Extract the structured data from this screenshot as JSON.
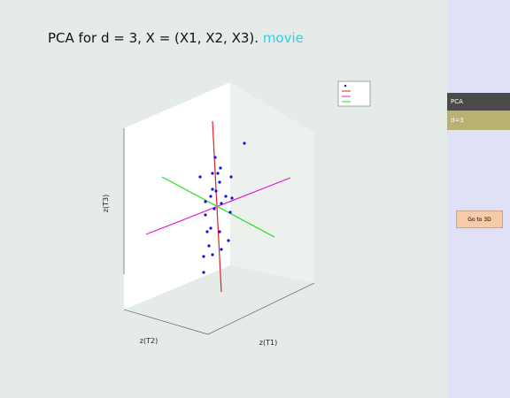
{
  "header": {
    "title": "PCA for d = 3, X = (X1, X2, X3).",
    "link": "movie"
  },
  "plot": {
    "xlabel": "z(T1)",
    "ylabel": "z(T2)",
    "zlabel": "z(T3)"
  },
  "sidebar": {
    "items": [
      "PCA",
      "d=3"
    ],
    "button": "Go to 3D"
  }
}
